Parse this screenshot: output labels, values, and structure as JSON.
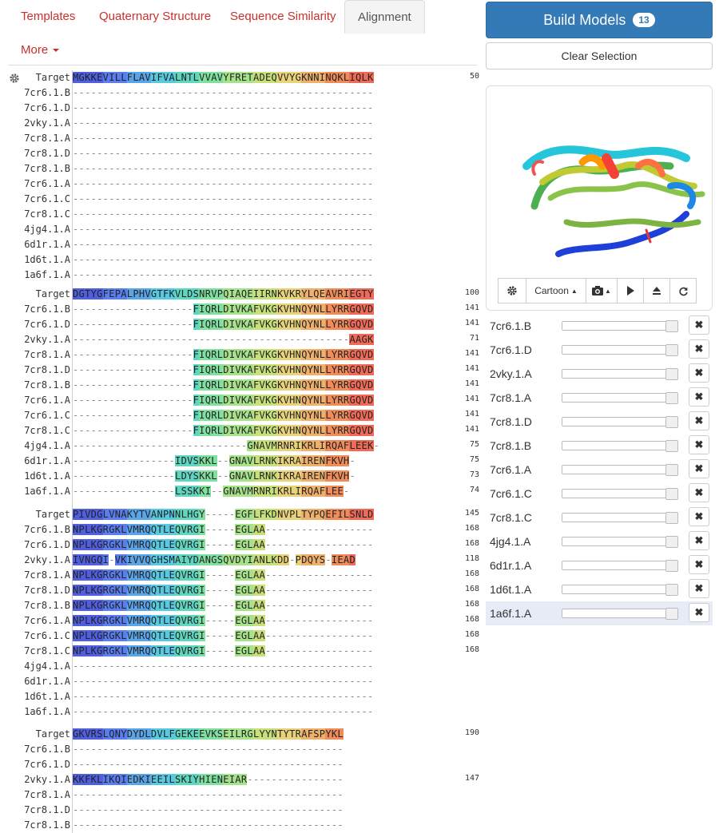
{
  "tabs": {
    "templates": "Templates",
    "quaternary": "Quaternary Structure",
    "similarity": "Sequence Similarity",
    "alignment": "Alignment",
    "more": "More"
  },
  "build": {
    "label": "Build Models",
    "count": "13"
  },
  "clear_label": "Clear Selection",
  "viewer": {
    "style_label": "Cartoon"
  },
  "models": [
    {
      "name": "7cr6.1.B"
    },
    {
      "name": "7cr6.1.D"
    },
    {
      "name": "2vky.1.A"
    },
    {
      "name": "7cr8.1.A"
    },
    {
      "name": "7cr8.1.D"
    },
    {
      "name": "7cr8.1.B"
    },
    {
      "name": "7cr6.1.A"
    },
    {
      "name": "7cr6.1.C"
    },
    {
      "name": "7cr8.1.C"
    },
    {
      "name": "4jg4.1.A"
    },
    {
      "name": "6d1r.1.A"
    },
    {
      "name": "1d6t.1.A"
    },
    {
      "name": "1a6f.1.A"
    }
  ],
  "alignment": {
    "block1": {
      "rows": [
        {
          "label": "Target",
          "seq": "MGKKEVILLFLAVIFVALNTLVVAVYFRETADEQVVYGKNNINQKLIQLK",
          "num": "50"
        },
        {
          "label": "7cr6.1.B",
          "seq": "--------------------------------------------------",
          "num": ""
        },
        {
          "label": "7cr6.1.D",
          "seq": "--------------------------------------------------",
          "num": ""
        },
        {
          "label": "2vky.1.A",
          "seq": "--------------------------------------------------",
          "num": ""
        },
        {
          "label": "7cr8.1.A",
          "seq": "--------------------------------------------------",
          "num": ""
        },
        {
          "label": "7cr8.1.D",
          "seq": "--------------------------------------------------",
          "num": ""
        },
        {
          "label": "7cr8.1.B",
          "seq": "--------------------------------------------------",
          "num": ""
        },
        {
          "label": "7cr6.1.A",
          "seq": "--------------------------------------------------",
          "num": ""
        },
        {
          "label": "7cr6.1.C",
          "seq": "--------------------------------------------------",
          "num": ""
        },
        {
          "label": "7cr8.1.C",
          "seq": "--------------------------------------------------",
          "num": ""
        },
        {
          "label": "4jg4.1.A",
          "seq": "--------------------------------------------------",
          "num": ""
        },
        {
          "label": "6d1r.1.A",
          "seq": "--------------------------------------------------",
          "num": ""
        },
        {
          "label": "1d6t.1.A",
          "seq": "--------------------------------------------------",
          "num": ""
        },
        {
          "label": "1a6f.1.A",
          "seq": "--------------------------------------------------",
          "num": ""
        }
      ]
    },
    "block2": {
      "rows": [
        {
          "label": "Target",
          "seq": "DGTYGFEPALPHVGTFKVLDSNRVPQIAQEIIRNKVKRYLQEAVRIEGTY",
          "num": "100"
        },
        {
          "label": "7cr6.1.B",
          "seq": "--------------------FIQRLDIVKAFVKGKVHNQYNLLYRRGQVD",
          "num": "141"
        },
        {
          "label": "7cr6.1.D",
          "seq": "--------------------FIQRLDIVKAFVKGKVHNQYNLLYRRGQVD",
          "num": "141"
        },
        {
          "label": "2vky.1.A",
          "seq": "----------------------------------------------AAGK",
          "num": "71"
        },
        {
          "label": "7cr8.1.A",
          "seq": "--------------------FIQRLDIVKAFVKGKVHNQYNLLYRRGQVD",
          "num": "141"
        },
        {
          "label": "7cr8.1.D",
          "seq": "--------------------FIQRLDIVKAFVKGKVHNQYNLLYRRGQVD",
          "num": "141"
        },
        {
          "label": "7cr8.1.B",
          "seq": "--------------------FIQRLDIVKAFVKGKVHNQYNLLYRRGQVD",
          "num": "141"
        },
        {
          "label": "7cr6.1.A",
          "seq": "--------------------FIQRLDIVKAFVKGKVHNQYNLLYRRGQVD",
          "num": "141"
        },
        {
          "label": "7cr6.1.C",
          "seq": "--------------------FIQRLDIVKAFVKGKVHNQYNLLYRRGQVD",
          "num": "141"
        },
        {
          "label": "7cr8.1.C",
          "seq": "--------------------FIQRLDIVKAFVKGKVHNQYNLLYRRGQVD",
          "num": "141"
        },
        {
          "label": "4jg4.1.A",
          "seq": "-----------------------------GNAVMRNRIKRLIRQAFLEEK-",
          "num": "75"
        },
        {
          "label": "6d1r.1.A",
          "seq": "-----------------IDVSKKL--GNAVLRNKIKRAIRENFKVH-",
          "num": "75"
        },
        {
          "label": "1d6t.1.A",
          "seq": "-----------------LDYSKKL--GNAVLRNKIKRAIRENFKVH-",
          "num": "73"
        },
        {
          "label": "1a6f.1.A",
          "seq": "-----------------LSSKKI--GNAVMRNRIKRLIRQAFLEE-",
          "num": "74"
        }
      ]
    },
    "block3": {
      "rows": [
        {
          "label": "Target",
          "seq": "PIVDGLVNAKYTVANPNNLHGY-----EGFLFKDNVPLTYPQEFILSNLD",
          "num": "145"
        },
        {
          "label": "7cr6.1.B",
          "seq": "NPLKGRGKLVMRQQTLEQVRGI-----EGLAA------------------",
          "num": "168"
        },
        {
          "label": "7cr6.1.D",
          "seq": "NPLKGRGKLVMRQQTLEQVRGI-----EGLAA------------------",
          "num": "168"
        },
        {
          "label": "2vky.1.A",
          "seq": "IVNGQI-VKIVVQGHSMAIYDANGSQVDYIANLKDD-PDQYS-IEAD",
          "num": "118"
        },
        {
          "label": "7cr8.1.A",
          "seq": "NPLKGRGKLVMRQQTLEQVRGI-----EGLAA------------------",
          "num": "168"
        },
        {
          "label": "7cr8.1.D",
          "seq": "NPLKGRGKLVMRQQTLEQVRGI-----EGLAA------------------",
          "num": "168"
        },
        {
          "label": "7cr8.1.B",
          "seq": "NPLKGRGKLVMRQQTLEQVRGI-----EGLAA------------------",
          "num": "168"
        },
        {
          "label": "7cr6.1.A",
          "seq": "NPLKGRGKLVMRQQTLEQVRGI-----EGLAA------------------",
          "num": "168"
        },
        {
          "label": "7cr6.1.C",
          "seq": "NPLKGRGKLVMRQQTLEQVRGI-----EGLAA------------------",
          "num": "168"
        },
        {
          "label": "7cr8.1.C",
          "seq": "NPLKGRGKLVMRQQTLEQVRGI-----EGLAA------------------",
          "num": "168"
        },
        {
          "label": "4jg4.1.A",
          "seq": "--------------------------------------------------",
          "num": ""
        },
        {
          "label": "6d1r.1.A",
          "seq": "--------------------------------------------------",
          "num": ""
        },
        {
          "label": "1d6t.1.A",
          "seq": "--------------------------------------------------",
          "num": ""
        },
        {
          "label": "1a6f.1.A",
          "seq": "--------------------------------------------------",
          "num": ""
        }
      ]
    },
    "block4": {
      "rows": [
        {
          "label": "Target",
          "seq": "GKVRSLQNYDYDLDVLFGEKEEVKSEILRGLYYNTYTRAFSPYKL",
          "num": "190"
        },
        {
          "label": "7cr6.1.B",
          "seq": "---------------------------------------------",
          "num": ""
        },
        {
          "label": "7cr6.1.D",
          "seq": "---------------------------------------------",
          "num": ""
        },
        {
          "label": "2vky.1.A",
          "seq": "KKFKLIKQIEDKIEEILSKIYHIENEIAR----------------",
          "num": "147"
        },
        {
          "label": "7cr8.1.A",
          "seq": "---------------------------------------------",
          "num": ""
        },
        {
          "label": "7cr8.1.D",
          "seq": "---------------------------------------------",
          "num": ""
        },
        {
          "label": "7cr8.1.B",
          "seq": "---------------------------------------------",
          "num": ""
        }
      ]
    }
  }
}
